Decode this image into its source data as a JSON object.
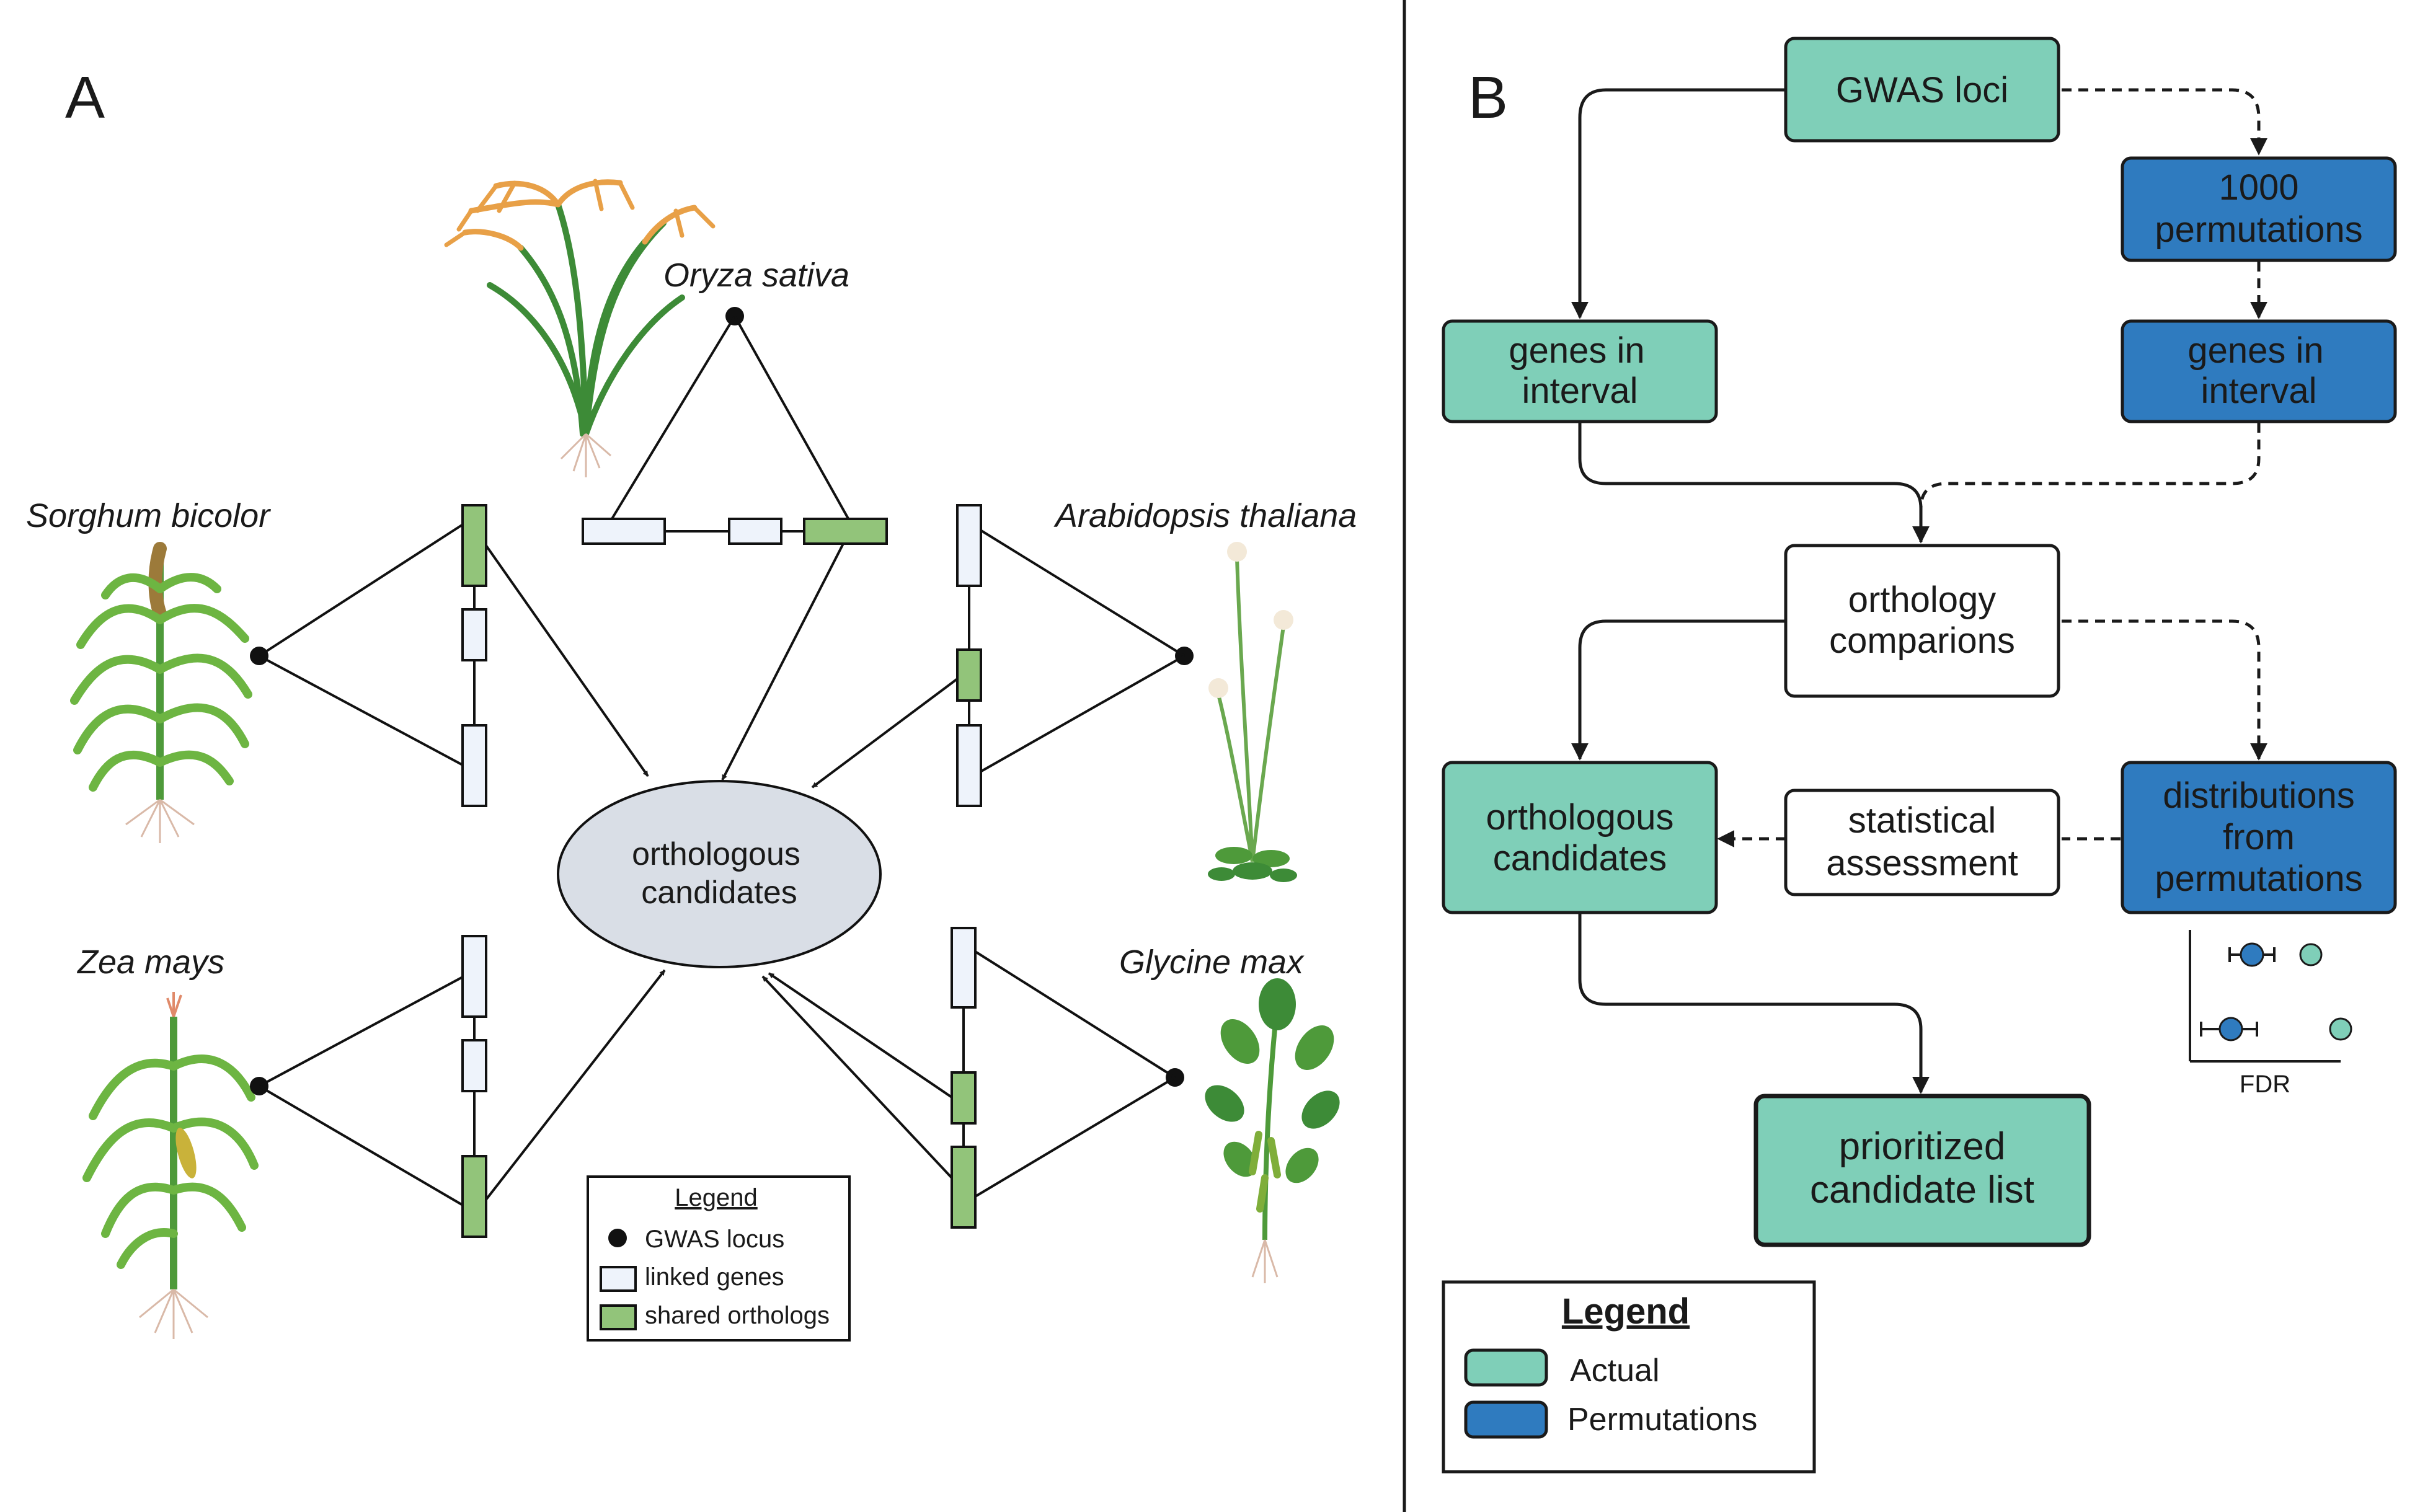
{
  "panel_a": {
    "label": "A",
    "species": {
      "oryza": "Oryza sativa",
      "sorghum": "Sorghum bicolor",
      "arabidopsis": "Arabidopsis thaliana",
      "zea": "Zea mays",
      "glycine": "Glycine max"
    },
    "center_line1": "orthologous",
    "center_line2": "candidates",
    "legend": {
      "title": "Legend",
      "gwas": "GWAS locus",
      "linked": "linked genes",
      "shared": "shared orthologs"
    }
  },
  "panel_b": {
    "label": "B",
    "gwas_loci": "GWAS loci",
    "perm_line1": "1000",
    "perm_line2": "permutations",
    "genes_actual_line1": "genes in",
    "genes_actual_line2": "interval",
    "genes_perm_line1": "genes in",
    "genes_perm_line2": "interval",
    "orthology_line1": "orthology",
    "orthology_line2": "comparions",
    "ortho_cand_line1": "orthologous",
    "ortho_cand_line2": "candidates",
    "stat_line1": "statistical",
    "stat_line2": "assessment",
    "dist_line1": "distributions",
    "dist_line2": "from",
    "dist_line3": "permutations",
    "prior_line1": "prioritized",
    "prior_line2": "candidate list",
    "fdr_label": "FDR",
    "legend": {
      "title": "Legend",
      "actual": "Actual",
      "permutations": "Permutations"
    }
  },
  "colors": {
    "actual": "#7fcfb8",
    "permutations": "#2f7bbf",
    "shared_ortholog": "#92c47a",
    "linked_gene": "#eef3fb",
    "center_ellipse": "#d9dee6",
    "plant_green": "#4e9a3a",
    "rice_panicle": "#e8a047"
  }
}
